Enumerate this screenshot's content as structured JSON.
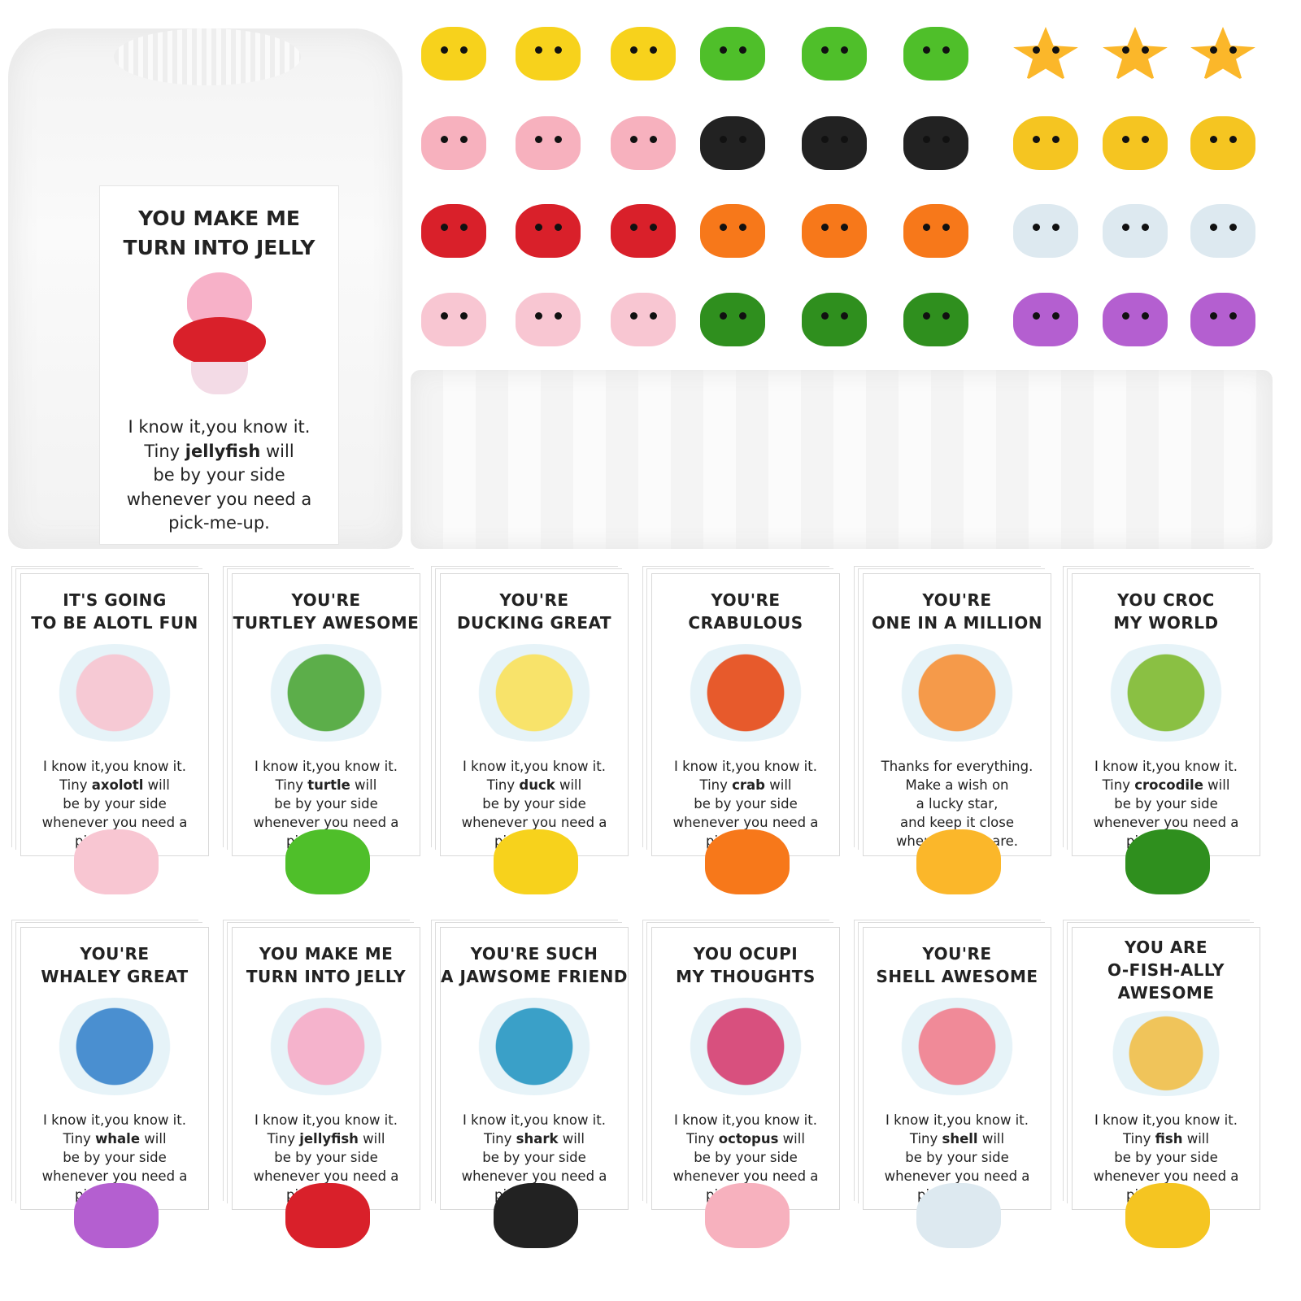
{
  "main_card": {
    "title": [
      "YOU MAKE ME",
      "TURN INTO JELLY"
    ],
    "lines": [
      [
        "I know it,you know it."
      ],
      [
        "Tiny ",
        "jellyfish",
        " will"
      ],
      [
        "be by your side"
      ],
      [
        "whenever you need a"
      ],
      [
        "pick-me-up."
      ]
    ]
  },
  "toys": [
    {
      "name": "duck",
      "color": "#f7d21c"
    },
    {
      "name": "duck",
      "color": "#f7d21c"
    },
    {
      "name": "duck",
      "color": "#f7d21c"
    },
    {
      "name": "turtle",
      "color": "#4fbf2a"
    },
    {
      "name": "turtle",
      "color": "#4fbf2a"
    },
    {
      "name": "turtle",
      "color": "#4fbf2a"
    },
    {
      "name": "star",
      "color": "#fbb72a"
    },
    {
      "name": "star",
      "color": "#fbb72a"
    },
    {
      "name": "star",
      "color": "#fbb72a"
    },
    {
      "name": "octopus",
      "color": "#f7b1be"
    },
    {
      "name": "octopus",
      "color": "#f7b1be"
    },
    {
      "name": "octopus",
      "color": "#f7b1be"
    },
    {
      "name": "shark",
      "color": "#222222"
    },
    {
      "name": "shark",
      "color": "#222222"
    },
    {
      "name": "shark",
      "color": "#222222"
    },
    {
      "name": "pufferfish",
      "color": "#f5c521"
    },
    {
      "name": "pufferfish",
      "color": "#f5c521"
    },
    {
      "name": "pufferfish",
      "color": "#f5c521"
    },
    {
      "name": "jellyfish",
      "color": "#d9202a"
    },
    {
      "name": "jellyfish",
      "color": "#d9202a"
    },
    {
      "name": "jellyfish",
      "color": "#d9202a"
    },
    {
      "name": "crab",
      "color": "#f7781a"
    },
    {
      "name": "crab",
      "color": "#f7781a"
    },
    {
      "name": "crab",
      "color": "#f7781a"
    },
    {
      "name": "shell",
      "color": "#dde9f0"
    },
    {
      "name": "shell",
      "color": "#dde9f0"
    },
    {
      "name": "shell",
      "color": "#dde9f0"
    },
    {
      "name": "axolotl",
      "color": "#f8c6d2"
    },
    {
      "name": "axolotl",
      "color": "#f8c6d2"
    },
    {
      "name": "axolotl",
      "color": "#f8c6d2"
    },
    {
      "name": "crocodile",
      "color": "#2f8f1e"
    },
    {
      "name": "crocodile",
      "color": "#2f8f1e"
    },
    {
      "name": "crocodile",
      "color": "#2f8f1e"
    },
    {
      "name": "whale",
      "color": "#b45fd0"
    },
    {
      "name": "whale",
      "color": "#b45fd0"
    },
    {
      "name": "whale",
      "color": "#b45fd0"
    }
  ],
  "cards": [
    {
      "title": [
        "IT'S GOING",
        "TO BE ALOTL FUN"
      ],
      "lines": [
        [
          "I know it,you know it."
        ],
        [
          "Tiny ",
          "axolotl",
          " will"
        ],
        [
          "be by your side"
        ],
        [
          "whenever you need a"
        ],
        [
          "pick-me-up."
        ]
      ],
      "pic": "#f6c9d4",
      "toy": "#f8c6d2"
    },
    {
      "title": [
        "YOU'RE",
        "TURTLEY AWESOME"
      ],
      "lines": [
        [
          "I know it,you know it."
        ],
        [
          "Tiny ",
          "turtle",
          " will"
        ],
        [
          "be by your side"
        ],
        [
          "whenever you need a"
        ],
        [
          "pick-me-up."
        ]
      ],
      "pic": "#5cae4a",
      "toy": "#4fbf2a"
    },
    {
      "title": [
        "YOU'RE",
        "DUCKING GREAT"
      ],
      "lines": [
        [
          "I know it,you know it."
        ],
        [
          "Tiny ",
          "duck",
          " will"
        ],
        [
          "be by your side"
        ],
        [
          "whenever you need a"
        ],
        [
          "pick-me-up."
        ]
      ],
      "pic": "#f8e36a",
      "toy": "#f7d21c"
    },
    {
      "title": [
        "YOU'RE",
        "CRABULOUS"
      ],
      "lines": [
        [
          "I know it,you know it."
        ],
        [
          "Tiny ",
          "crab",
          " will"
        ],
        [
          "be by your side"
        ],
        [
          "whenever you need a"
        ],
        [
          "pick-me-up."
        ]
      ],
      "pic": "#e75a2c",
      "toy": "#f7781a"
    },
    {
      "title": [
        "YOU'RE",
        "ONE IN A MILLION"
      ],
      "lines": [
        [
          "Thanks for everything."
        ],
        [
          "Make a wish on"
        ],
        [
          "a lucky star,"
        ],
        [
          "and keep it close"
        ],
        [
          "wherever you are."
        ]
      ],
      "pic": "#f59a4a",
      "toy": "#fbb72a"
    },
    {
      "title": [
        "YOU CROC",
        "MY WORLD"
      ],
      "lines": [
        [
          "I know it,you know it."
        ],
        [
          "Tiny ",
          "crocodile",
          " will"
        ],
        [
          "be by your side"
        ],
        [
          "whenever you need a"
        ],
        [
          "pick-me-up."
        ]
      ],
      "pic": "#8ac043",
      "toy": "#2f8f1e"
    },
    {
      "title": [
        "YOU'RE",
        "WHALEY GREAT"
      ],
      "lines": [
        [
          "I know it,you know it."
        ],
        [
          "Tiny ",
          "whale",
          " will"
        ],
        [
          "be by your side"
        ],
        [
          "whenever you need a"
        ],
        [
          "pick-me-up."
        ]
      ],
      "pic": "#4a8fd0",
      "toy": "#b45fd0"
    },
    {
      "title": [
        "YOU MAKE ME",
        "TURN INTO JELLY"
      ],
      "lines": [
        [
          "I know it,you know it."
        ],
        [
          "Tiny ",
          "jellyfish",
          " will"
        ],
        [
          "be by your side"
        ],
        [
          "whenever you need a"
        ],
        [
          "pick-me-up."
        ]
      ],
      "pic": "#f5b3cc",
      "toy": "#d9202a"
    },
    {
      "title": [
        "YOU'RE SUCH",
        "A JAWSOME FRIEND"
      ],
      "lines": [
        [
          "I know it,you know it."
        ],
        [
          "Tiny ",
          "shark",
          " will"
        ],
        [
          "be by your side"
        ],
        [
          "whenever you need a"
        ],
        [
          "pick-me-up."
        ]
      ],
      "pic": "#3aa0c8",
      "toy": "#222222"
    },
    {
      "title": [
        "YOU OCUPI",
        "MY THOUGHTS"
      ],
      "lines": [
        [
          "I know it,you know it."
        ],
        [
          "Tiny ",
          "octopus",
          " will"
        ],
        [
          "be by your side"
        ],
        [
          "whenever you need a"
        ],
        [
          "pick-me-up."
        ]
      ],
      "pic": "#d8507e",
      "toy": "#f7b1be"
    },
    {
      "title": [
        "YOU'RE",
        "SHELL AWESOME"
      ],
      "lines": [
        [
          "I know it,you know it."
        ],
        [
          "Tiny ",
          "shell",
          " will"
        ],
        [
          "be by your side"
        ],
        [
          "whenever you need a"
        ],
        [
          "pick-me-up."
        ]
      ],
      "pic": "#f08a98",
      "toy": "#dde9f0"
    },
    {
      "title": [
        "YOU ARE",
        "O-FISH-ALLY",
        "AWESOME"
      ],
      "lines": [
        [
          "I know it,you know it."
        ],
        [
          "Tiny ",
          "fish",
          " will"
        ],
        [
          "be by your side"
        ],
        [
          "whenever you need a"
        ],
        [
          "pick-me-up."
        ]
      ],
      "pic": "#f0c45a",
      "toy": "#f5c521"
    }
  ]
}
